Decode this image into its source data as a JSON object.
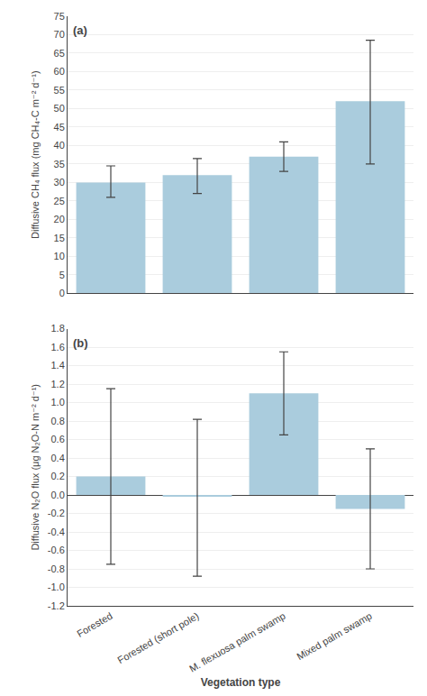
{
  "chart_data": [
    {
      "type": "bar",
      "categories": [
        "Forested",
        "Forested (short pole)",
        "M. flexuosa palm swamp",
        "Mixed palm swamp"
      ],
      "values": [
        30.0,
        32.0,
        37.0,
        52.0
      ],
      "err_low": [
        4.0,
        5.0,
        4.0,
        17.0
      ],
      "err_high": [
        4.5,
        4.5,
        4.0,
        16.5
      ],
      "ylabel": "Diffusive CH₄ flux (mg CH₄-C m⁻² d⁻¹)",
      "ylim": [
        0,
        75
      ],
      "yticks": [
        0,
        5,
        10,
        15,
        20,
        25,
        30,
        35,
        40,
        45,
        50,
        55,
        60,
        65,
        70,
        75
      ],
      "annotations": [
        "(a)"
      ],
      "color": "#aaccdd",
      "grid": true,
      "tick_labels": "y"
    },
    {
      "type": "bar",
      "categories": [
        "Forested",
        "Forested (short pole)",
        "M. flexuosa palm swamp",
        "Mixed palm swamp"
      ],
      "values": [
        0.2,
        -0.02,
        1.1,
        -0.15
      ],
      "err_low": [
        0.95,
        0.86,
        0.45,
        0.65
      ],
      "err_high": [
        0.95,
        0.84,
        0.45,
        0.65
      ],
      "xlabel": "Vegetation type",
      "ylabel": "Diffusive N₂O flux (μg N₂O-N m⁻² d⁻¹)",
      "ylim": [
        -1.2,
        1.8
      ],
      "yticks": [
        {
          "value": -1.2,
          "label": "-1.2"
        },
        {
          "value": -1.0,
          "label": "-1.0"
        },
        {
          "value": -0.8,
          "label": "-0.8"
        },
        {
          "value": -0.6,
          "label": "-0.6"
        },
        {
          "value": -0.4,
          "label": "-0.4"
        },
        {
          "value": -0.2,
          "label": "-0.2"
        },
        {
          "value": 0.0,
          "label": "0.0"
        },
        {
          "value": 0.2,
          "label": "0.2"
        },
        {
          "value": 0.4,
          "label": "0.4"
        },
        {
          "value": 0.6,
          "label": "0.6"
        },
        {
          "value": 0.8,
          "label": "0.8"
        },
        {
          "value": 1.0,
          "label": "1.0"
        },
        {
          "value": 1.2,
          "label": "1.2"
        },
        {
          "value": 1.4,
          "label": "1.4"
        },
        {
          "value": 1.6,
          "label": "1.6"
        },
        {
          "value": 1.8,
          "label": "1.8"
        }
      ],
      "annotations": [
        "(b)"
      ],
      "color": "#aaccdd",
      "grid": true
    }
  ]
}
